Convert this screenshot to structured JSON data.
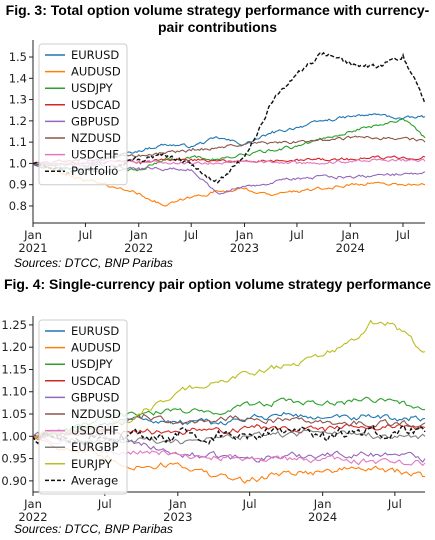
{
  "figures": [
    {
      "title": "Fig. 3: Total option volume strategy performance with currency-pair contributions",
      "source": "Sources: DTCC, BNP Paribas"
    },
    {
      "title": "Fig. 4: Single-currency pair option volume strategy performance",
      "source": "Sources: DTCC, BNP Paribas"
    }
  ],
  "chart_data": [
    {
      "type": "line",
      "title": "Fig. 3: Total option volume strategy performance with currency-pair contributions",
      "x_range": [
        "2021-01-01",
        "2024-09-15"
      ],
      "ylim": [
        0.72,
        1.58
      ],
      "yticks": [
        "0.8",
        "0.9",
        "1.0",
        "1.1",
        "1.2",
        "1.3",
        "1.4",
        "1.5"
      ],
      "xticks": [
        {
          "date": "2021-01-01",
          "label": "Jan\n2021"
        },
        {
          "date": "2021-07-01",
          "label": "Jul"
        },
        {
          "date": "2022-01-01",
          "label": "Jan\n2022"
        },
        {
          "date": "2022-07-01",
          "label": "Jul"
        },
        {
          "date": "2023-01-01",
          "label": "Jan\n2023"
        },
        {
          "date": "2023-07-01",
          "label": "Jul"
        },
        {
          "date": "2024-01-01",
          "label": "Jan\n2024"
        },
        {
          "date": "2024-07-01",
          "label": "Jul"
        }
      ],
      "legend_position": "top-left",
      "grid": false,
      "series": [
        {
          "name": "EURUSD",
          "color": "#1f77b4",
          "dash": false,
          "points": [
            [
              "2021-01-01",
              1.0
            ],
            [
              "2021-04-01",
              0.97
            ],
            [
              "2021-07-01",
              0.99
            ],
            [
              "2021-10-01",
              1.03
            ],
            [
              "2022-01-01",
              1.06
            ],
            [
              "2022-04-01",
              1.09
            ],
            [
              "2022-07-01",
              1.08
            ],
            [
              "2022-10-01",
              1.12
            ],
            [
              "2023-01-01",
              1.09
            ],
            [
              "2023-04-01",
              1.14
            ],
            [
              "2023-07-01",
              1.17
            ],
            [
              "2023-10-01",
              1.2
            ],
            [
              "2024-01-01",
              1.22
            ],
            [
              "2024-04-01",
              1.23
            ],
            [
              "2024-07-01",
              1.21
            ],
            [
              "2024-09-15",
              1.22
            ]
          ]
        },
        {
          "name": "AUDUSD",
          "color": "#ff7f0e",
          "dash": false,
          "points": [
            [
              "2021-01-01",
              1.0
            ],
            [
              "2021-04-01",
              0.96
            ],
            [
              "2021-07-01",
              0.92
            ],
            [
              "2021-10-01",
              0.89
            ],
            [
              "2022-01-01",
              0.86
            ],
            [
              "2022-04-01",
              0.8
            ],
            [
              "2022-07-01",
              0.84
            ],
            [
              "2022-10-01",
              0.87
            ],
            [
              "2023-01-01",
              0.88
            ],
            [
              "2023-04-01",
              0.85
            ],
            [
              "2023-07-01",
              0.87
            ],
            [
              "2023-10-01",
              0.88
            ],
            [
              "2024-01-01",
              0.9
            ],
            [
              "2024-04-01",
              0.91
            ],
            [
              "2024-07-01",
              0.9
            ],
            [
              "2024-09-15",
              0.9
            ]
          ]
        },
        {
          "name": "USDJPY",
          "color": "#2ca02c",
          "dash": false,
          "points": [
            [
              "2021-01-01",
              1.0
            ],
            [
              "2021-04-01",
              0.98
            ],
            [
              "2021-07-01",
              0.97
            ],
            [
              "2021-10-01",
              0.96
            ],
            [
              "2022-01-01",
              0.97
            ],
            [
              "2022-04-01",
              1.02
            ],
            [
              "2022-07-01",
              1.03
            ],
            [
              "2022-10-01",
              1.02
            ],
            [
              "2023-01-01",
              1.04
            ],
            [
              "2023-04-01",
              1.06
            ],
            [
              "2023-07-01",
              1.08
            ],
            [
              "2023-10-01",
              1.12
            ],
            [
              "2024-01-01",
              1.15
            ],
            [
              "2024-04-01",
              1.18
            ],
            [
              "2024-07-01",
              1.21
            ],
            [
              "2024-09-15",
              1.12
            ]
          ]
        },
        {
          "name": "USDCAD",
          "color": "#d62728",
          "dash": false,
          "points": [
            [
              "2021-01-01",
              1.0
            ],
            [
              "2021-07-01",
              1.0
            ],
            [
              "2022-01-01",
              1.01
            ],
            [
              "2022-07-01",
              1.02
            ],
            [
              "2023-01-01",
              1.01
            ],
            [
              "2023-07-01",
              1.02
            ],
            [
              "2024-01-01",
              1.02
            ],
            [
              "2024-07-01",
              1.03
            ],
            [
              "2024-09-15",
              1.03
            ]
          ]
        },
        {
          "name": "GBPUSD",
          "color": "#9467bd",
          "dash": false,
          "points": [
            [
              "2021-01-01",
              1.0
            ],
            [
              "2021-07-01",
              0.99
            ],
            [
              "2022-01-01",
              0.98
            ],
            [
              "2022-07-01",
              0.97
            ],
            [
              "2022-10-01",
              0.86
            ],
            [
              "2023-01-01",
              0.89
            ],
            [
              "2023-07-01",
              0.93
            ],
            [
              "2024-01-01",
              0.94
            ],
            [
              "2024-07-01",
              0.95
            ],
            [
              "2024-09-15",
              0.96
            ]
          ]
        },
        {
          "name": "NZDUSD",
          "color": "#8c564b",
          "dash": false,
          "points": [
            [
              "2021-01-01",
              1.0
            ],
            [
              "2021-07-01",
              1.02
            ],
            [
              "2022-01-01",
              1.04
            ],
            [
              "2022-07-01",
              1.06
            ],
            [
              "2023-01-01",
              1.09
            ],
            [
              "2023-07-01",
              1.1
            ],
            [
              "2024-01-01",
              1.12
            ],
            [
              "2024-07-01",
              1.12
            ],
            [
              "2024-09-15",
              1.1
            ]
          ]
        },
        {
          "name": "USDCHF",
          "color": "#e377c2",
          "dash": false,
          "points": [
            [
              "2021-01-01",
              1.0
            ],
            [
              "2021-07-01",
              1.0
            ],
            [
              "2022-01-01",
              1.01
            ],
            [
              "2022-07-01",
              1.0
            ],
            [
              "2023-01-01",
              1.01
            ],
            [
              "2023-07-01",
              1.0
            ],
            [
              "2024-01-01",
              1.01
            ],
            [
              "2024-07-01",
              1.02
            ],
            [
              "2024-09-15",
              1.01
            ]
          ]
        },
        {
          "name": "Portfolio",
          "color": "#111111",
          "dash": true,
          "points": [
            [
              "2021-01-01",
              1.0
            ],
            [
              "2021-04-01",
              0.97
            ],
            [
              "2021-07-01",
              0.95
            ],
            [
              "2021-10-01",
              0.97
            ],
            [
              "2022-01-01",
              1.02
            ],
            [
              "2022-04-01",
              1.04
            ],
            [
              "2022-07-01",
              0.99
            ],
            [
              "2022-10-01",
              0.91
            ],
            [
              "2023-01-01",
              1.03
            ],
            [
              "2023-04-01",
              1.28
            ],
            [
              "2023-07-01",
              1.42
            ],
            [
              "2023-10-01",
              1.52
            ],
            [
              "2024-01-01",
              1.47
            ],
            [
              "2024-04-01",
              1.45
            ],
            [
              "2024-07-01",
              1.51
            ],
            [
              "2024-09-15",
              1.28
            ]
          ]
        }
      ]
    },
    {
      "type": "line",
      "title": "Fig. 4: Single-currency pair option volume strategy performance",
      "x_range": [
        "2022-01-01",
        "2024-09-15"
      ],
      "ylim": [
        0.875,
        1.27
      ],
      "yticks": [
        "0.90",
        "0.95",
        "1.00",
        "1.05",
        "1.10",
        "1.15",
        "1.20",
        "1.25"
      ],
      "xticks": [
        {
          "date": "2022-01-01",
          "label": "Jan\n2022"
        },
        {
          "date": "2022-07-01",
          "label": "Jul"
        },
        {
          "date": "2023-01-01",
          "label": "Jan\n2023"
        },
        {
          "date": "2023-07-01",
          "label": "Jul"
        },
        {
          "date": "2024-01-01",
          "label": "Jan\n2024"
        },
        {
          "date": "2024-07-01",
          "label": "Jul"
        }
      ],
      "legend_position": "top-left",
      "grid": false,
      "series": [
        {
          "name": "EURUSD",
          "color": "#1f77b4",
          "dash": false,
          "points": [
            [
              "2022-01-01",
              1.0
            ],
            [
              "2022-04-01",
              1.01
            ],
            [
              "2022-07-01",
              1.03
            ],
            [
              "2022-10-01",
              1.04
            ],
            [
              "2023-01-01",
              1.03
            ],
            [
              "2023-04-01",
              1.03
            ],
            [
              "2023-07-01",
              1.04
            ],
            [
              "2023-10-01",
              1.05
            ],
            [
              "2024-01-01",
              1.04
            ],
            [
              "2024-04-01",
              1.04
            ],
            [
              "2024-07-01",
              1.04
            ],
            [
              "2024-09-15",
              1.04
            ]
          ]
        },
        {
          "name": "AUDUSD",
          "color": "#ff7f0e",
          "dash": false,
          "points": [
            [
              "2022-01-01",
              1.0
            ],
            [
              "2022-04-01",
              0.97
            ],
            [
              "2022-07-01",
              0.95
            ],
            [
              "2022-10-01",
              0.93
            ],
            [
              "2023-01-01",
              0.94
            ],
            [
              "2023-04-01",
              0.91
            ],
            [
              "2023-07-01",
              0.9
            ],
            [
              "2023-10-01",
              0.92
            ],
            [
              "2024-01-01",
              0.92
            ],
            [
              "2024-04-01",
              0.93
            ],
            [
              "2024-07-01",
              0.92
            ],
            [
              "2024-09-15",
              0.91
            ]
          ]
        },
        {
          "name": "USDJPY",
          "color": "#2ca02c",
          "dash": false,
          "points": [
            [
              "2022-01-01",
              1.0
            ],
            [
              "2022-04-01",
              1.01
            ],
            [
              "2022-07-01",
              1.04
            ],
            [
              "2022-10-01",
              1.05
            ],
            [
              "2023-01-01",
              1.06
            ],
            [
              "2023-04-01",
              1.05
            ],
            [
              "2023-07-01",
              1.07
            ],
            [
              "2023-10-01",
              1.08
            ],
            [
              "2024-01-01",
              1.07
            ],
            [
              "2024-04-01",
              1.08
            ],
            [
              "2024-07-01",
              1.08
            ],
            [
              "2024-09-15",
              1.06
            ]
          ]
        },
        {
          "name": "USDCAD",
          "color": "#d62728",
          "dash": false,
          "points": [
            [
              "2022-01-01",
              1.0
            ],
            [
              "2022-07-01",
              1.01
            ],
            [
              "2023-01-01",
              1.01
            ],
            [
              "2023-07-01",
              1.02
            ],
            [
              "2024-01-01",
              1.02
            ],
            [
              "2024-07-01",
              1.02
            ],
            [
              "2024-09-15",
              1.02
            ]
          ]
        },
        {
          "name": "GBPUSD",
          "color": "#9467bd",
          "dash": false,
          "points": [
            [
              "2022-01-01",
              1.0
            ],
            [
              "2022-04-01",
              1.01
            ],
            [
              "2022-07-01",
              1.0
            ],
            [
              "2022-10-01",
              0.98
            ],
            [
              "2023-01-01",
              0.96
            ],
            [
              "2023-07-01",
              0.95
            ],
            [
              "2024-01-01",
              0.96
            ],
            [
              "2024-07-01",
              0.96
            ],
            [
              "2024-09-15",
              0.95
            ]
          ]
        },
        {
          "name": "NZDUSD",
          "color": "#8c564b",
          "dash": false,
          "points": [
            [
              "2022-01-01",
              1.0
            ],
            [
              "2022-07-01",
              1.02
            ],
            [
              "2022-10-01",
              1.04
            ],
            [
              "2023-01-01",
              1.03
            ],
            [
              "2023-07-01",
              1.04
            ],
            [
              "2024-01-01",
              1.03
            ],
            [
              "2024-07-01",
              1.03
            ],
            [
              "2024-09-15",
              1.03
            ]
          ]
        },
        {
          "name": "USDCHF",
          "color": "#e377c2",
          "dash": false,
          "points": [
            [
              "2022-01-01",
              1.0
            ],
            [
              "2022-07-01",
              0.97
            ],
            [
              "2023-01-01",
              0.96
            ],
            [
              "2023-07-01",
              0.95
            ],
            [
              "2024-01-01",
              0.95
            ],
            [
              "2024-07-01",
              0.94
            ],
            [
              "2024-09-15",
              0.94
            ]
          ]
        },
        {
          "name": "EURGBP",
          "color": "#7f7f7f",
          "dash": false,
          "points": [
            [
              "2022-01-01",
              1.0
            ],
            [
              "2022-07-01",
              0.99
            ],
            [
              "2023-01-01",
              0.99
            ],
            [
              "2023-07-01",
              1.0
            ],
            [
              "2024-01-01",
              1.01
            ],
            [
              "2024-07-01",
              1.0
            ],
            [
              "2024-09-15",
              1.0
            ]
          ]
        },
        {
          "name": "EURJPY",
          "color": "#bcbd22",
          "dash": false,
          "points": [
            [
              "2022-01-01",
              1.0
            ],
            [
              "2022-04-01",
              1.01
            ],
            [
              "2022-07-01",
              1.02
            ],
            [
              "2022-10-01",
              1.05
            ],
            [
              "2023-01-01",
              1.1
            ],
            [
              "2023-04-01",
              1.12
            ],
            [
              "2023-07-01",
              1.14
            ],
            [
              "2023-10-01",
              1.16
            ],
            [
              "2024-01-01",
              1.18
            ],
            [
              "2024-04-01",
              1.22
            ],
            [
              "2024-05-01",
              1.26
            ],
            [
              "2024-07-01",
              1.25
            ],
            [
              "2024-09-15",
              1.19
            ]
          ]
        },
        {
          "name": "Average",
          "color": "#111111",
          "dash": true,
          "points": [
            [
              "2022-01-01",
              1.0
            ],
            [
              "2022-07-01",
              0.995
            ],
            [
              "2023-01-01",
              1.0
            ],
            [
              "2023-07-01",
              1.005
            ],
            [
              "2024-01-01",
              1.01
            ],
            [
              "2024-07-01",
              1.01
            ],
            [
              "2024-09-15",
              1.01
            ]
          ]
        }
      ]
    }
  ]
}
